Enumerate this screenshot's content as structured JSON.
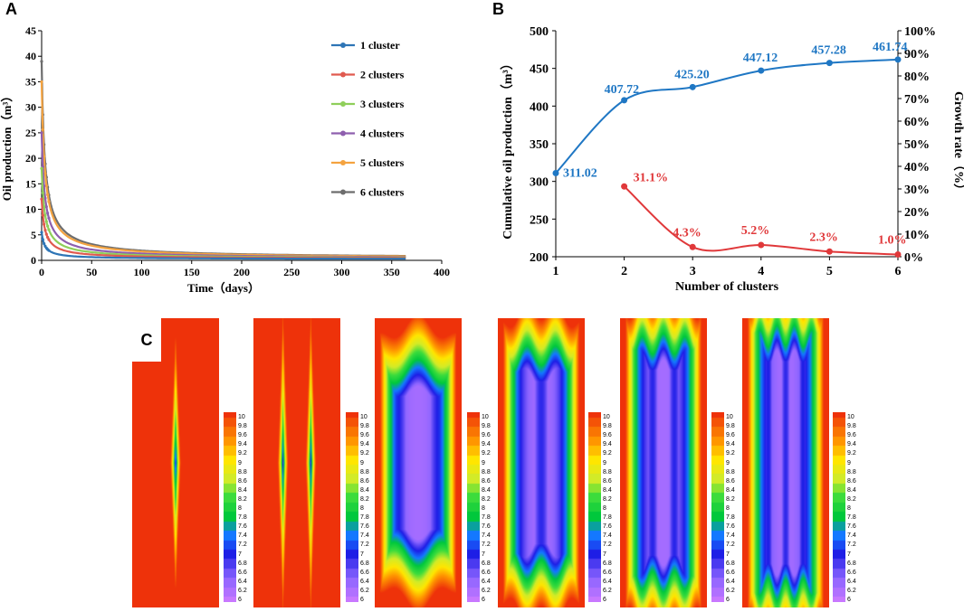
{
  "panel_labels": {
    "a": "A",
    "b": "B",
    "c": "C"
  },
  "colors": {
    "c1": "#2e75b6",
    "c2": "#e05a4f",
    "c3": "#8fcf5a",
    "c4": "#8e5fae",
    "c5": "#f4a340",
    "c6": "#6d6d6d",
    "blue": "#1f77c4",
    "red": "#e0383a"
  },
  "chart_data": [
    {
      "type": "line",
      "title": "",
      "xlabel": "Time（days）",
      "ylabel": "Oil production（m³）",
      "xlim": [
        0,
        400
      ],
      "ylim": [
        0,
        45
      ],
      "xticks": [
        "0",
        "50",
        "100",
        "150",
        "200",
        "250",
        "300",
        "350",
        "400"
      ],
      "yticks": [
        "0",
        "5",
        "10",
        "15",
        "20",
        "25",
        "30",
        "35",
        "40",
        "45"
      ],
      "legend_position": "top-right",
      "series": [
        {
          "name": "1 cluster",
          "initial": 5.5,
          "tail": 0.25
        },
        {
          "name": "2 clusters",
          "initial": 12,
          "tail": 0.3
        },
        {
          "name": "3 clusters",
          "initial": 18,
          "tail": 0.32
        },
        {
          "name": "4 clusters",
          "initial": 25,
          "tail": 0.34
        },
        {
          "name": "5 clusters",
          "initial": 35,
          "tail": 0.36
        },
        {
          "name": "6 clusters",
          "initial": 39,
          "tail": 0.38
        }
      ]
    },
    {
      "type": "line",
      "xlabel": "Number of clusters",
      "ylabel": "Cumulative oil production（m³）",
      "ylabel_right": "Growth rate（%）",
      "xlim": [
        1,
        6
      ],
      "ylim": [
        200,
        500
      ],
      "ylim_right": [
        0,
        100
      ],
      "xticks": [
        "1",
        "2",
        "3",
        "4",
        "5",
        "6"
      ],
      "yticks": [
        "200",
        "250",
        "300",
        "350",
        "400",
        "450",
        "500"
      ],
      "yticks_right": [
        "0%",
        "10%",
        "20%",
        "30%",
        "40%",
        "50%",
        "60%",
        "70%",
        "80%",
        "90%",
        "100%"
      ],
      "series": [
        {
          "name": "Cumulative oil production",
          "axis": "left",
          "x": [
            1,
            2,
            3,
            4,
            5,
            6
          ],
          "values": [
            311.02,
            407.72,
            425.2,
            447.12,
            457.28,
            461.74
          ],
          "labels": [
            "311.02",
            "407.72",
            "425.20",
            "447.12",
            "457.28",
            "461.74"
          ]
        },
        {
          "name": "Growth rate",
          "axis": "right",
          "x": [
            2,
            3,
            4,
            5,
            6
          ],
          "values": [
            31.1,
            4.3,
            5.2,
            2.3,
            1.0
          ],
          "labels": [
            "31.1%",
            "4.3%",
            "5.2%",
            "2.3%",
            "1.0%"
          ]
        }
      ]
    },
    {
      "type": "heatmap",
      "panels": [
        1,
        2,
        3,
        4,
        5,
        6
      ],
      "colorbar_min": 6,
      "colorbar_max": 10,
      "colorbar_ticks": [
        "10",
        "9.8",
        "9.6",
        "9.4",
        "9.2",
        "9",
        "8.8",
        "8.6",
        "8.4",
        "8.2",
        "8",
        "7.8",
        "7.6",
        "7.4",
        "7.2",
        "7",
        "6.8",
        "6.6",
        "6.4",
        "6.2",
        "6"
      ]
    }
  ]
}
